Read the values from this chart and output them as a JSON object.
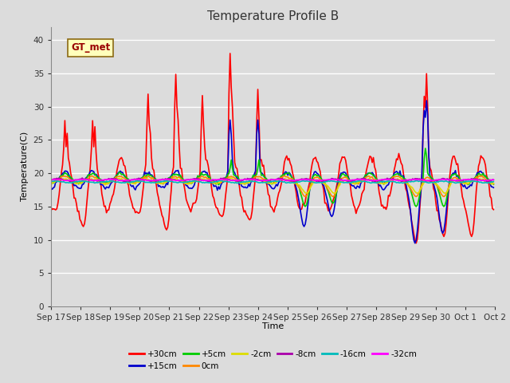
{
  "title": "Temperature Profile B",
  "xlabel": "Time",
  "ylabel": "Temperature(C)",
  "ylim": [
    0,
    42
  ],
  "yticks": [
    0,
    5,
    10,
    15,
    20,
    25,
    30,
    35,
    40
  ],
  "background_color": "#dcdcdc",
  "plot_background": "#dcdcdc",
  "grid_color": "#ffffff",
  "annotation_text": "GT_met",
  "annotation_bg": "#ffffbb",
  "annotation_border": "#8B6914",
  "series": [
    {
      "label": "+30cm",
      "color": "#ff0000",
      "lw": 1.2
    },
    {
      "label": "+15cm",
      "color": "#0000cc",
      "lw": 1.2
    },
    {
      "label": "+5cm",
      "color": "#00cc00",
      "lw": 1.2
    },
    {
      "label": "0cm",
      "color": "#ff8800",
      "lw": 1.2
    },
    {
      "label": "-2cm",
      "color": "#dddd00",
      "lw": 1.2
    },
    {
      "label": "-8cm",
      "color": "#aa00aa",
      "lw": 1.2
    },
    {
      "label": "-16cm",
      "color": "#00bbbb",
      "lw": 1.2
    },
    {
      "label": "-32cm",
      "color": "#ff00ff",
      "lw": 1.2
    }
  ],
  "x_tick_labels": [
    "Sep 17",
    "Sep 18",
    "Sep 19",
    "Sep 20",
    "Sep 21",
    "Sep 22",
    "Sep 23",
    "Sep 24",
    "Sep 25",
    "Sep 26",
    "Sep 27",
    "Sep 28",
    "Sep 29",
    "Sep 30",
    "Oct 1",
    "Oct 2"
  ],
  "title_fontsize": 11,
  "label_fontsize": 8,
  "tick_fontsize": 7.5
}
